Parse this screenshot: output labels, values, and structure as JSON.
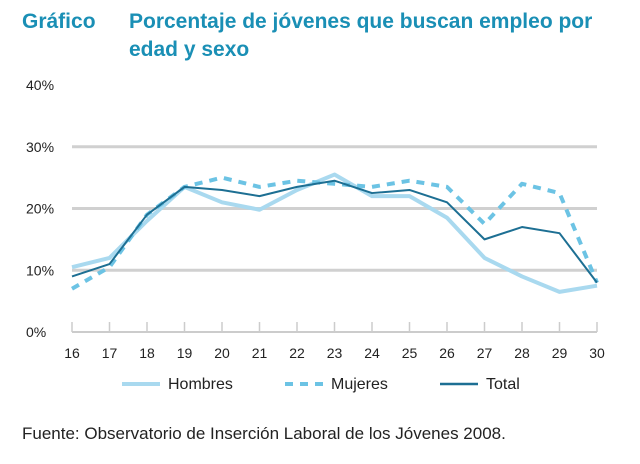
{
  "chart_data": {
    "type": "line",
    "label": "Gráfico",
    "title": "Porcentaje de jóvenes que buscan empleo por edad y sexo",
    "x": [
      16,
      17,
      18,
      19,
      20,
      21,
      22,
      23,
      24,
      25,
      26,
      27,
      28,
      29,
      30
    ],
    "ylim": [
      0,
      40
    ],
    "yticks": [
      "0%",
      "10%",
      "20%",
      "30%",
      "40%"
    ],
    "grid": true,
    "legend": "bottom",
    "series": [
      {
        "name": "Hombres",
        "color": "#a9d9ef",
        "style": "solid",
        "values": [
          10.5,
          12,
          18,
          23.5,
          21,
          19.8,
          23,
          25.5,
          22,
          22,
          18.5,
          12,
          9,
          6.5,
          7.5
        ]
      },
      {
        "name": "Mujeres",
        "color": "#6cc3e4",
        "style": "dashed",
        "values": [
          7,
          10.5,
          19,
          23.5,
          25,
          23.5,
          24.5,
          24,
          23.5,
          24.5,
          23.5,
          17.5,
          24,
          22.5,
          8
        ]
      },
      {
        "name": "Total",
        "color": "#1d6f93",
        "style": "solid",
        "values": [
          9,
          11,
          19,
          23.5,
          23,
          22,
          23.5,
          24.5,
          22.5,
          23,
          21,
          15,
          17,
          16,
          8
        ]
      }
    ]
  },
  "source": "Fuente: Observatorio de Inserción Laboral de los Jóvenes 2008."
}
